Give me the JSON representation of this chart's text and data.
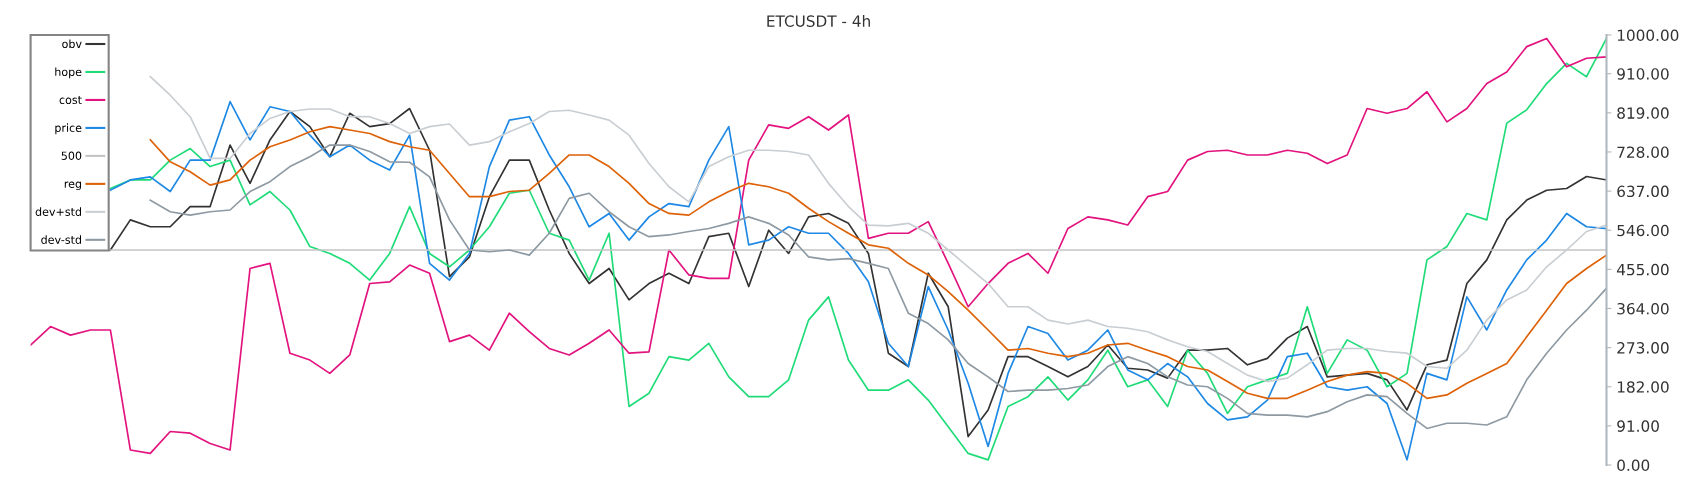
{
  "chart_data": {
    "type": "line",
    "title": "ETCUSDT - 4h",
    "categories": [
      null,
      null,
      null,
      null,
      null,
      null,
      null,
      null,
      null,
      null,
      null,
      null,
      null,
      null,
      null,
      null,
      null,
      null,
      null,
      null,
      null,
      null,
      null,
      null,
      null,
      null,
      null,
      null,
      null,
      null,
      null,
      null,
      null,
      null,
      null,
      null,
      null,
      null,
      null,
      null,
      null,
      null,
      null,
      null,
      null,
      null,
      null,
      null,
      null,
      null,
      null,
      null,
      null,
      null,
      null,
      null,
      null,
      null,
      null,
      null,
      null,
      null,
      null,
      null,
      null,
      null,
      null,
      null,
      null,
      null,
      null,
      null,
      null,
      null,
      null,
      null,
      null,
      null,
      null,
      null
    ],
    "series": [
      {
        "name": "obv",
        "color": "#333333",
        "values": [
          null,
          null,
          null,
          null,
          500,
          570,
          554,
          554,
          601,
          601,
          744,
          655,
          756,
          822,
          787,
          717,
          818,
          787,
          794,
          829,
          732,
          438,
          484,
          624,
          709,
          709,
          593,
          492,
          422,
          457,
          384,
          422,
          446,
          422,
          531,
          539,
          415,
          546,
          492,
          577,
          585,
          562,
          492,
          260,
          229,
          446,
          368,
          66,
          128,
          252,
          252,
          229,
          205,
          229,
          279,
          225,
          221,
          202,
          267,
          267,
          271,
          233,
          248,
          295,
          322,
          205,
          209,
          213,
          198,
          128,
          233,
          244,
          422,
          477,
          570,
          616,
          639,
          643,
          671,
          663
        ]
      },
      {
        "name": "hope",
        "color": "#1fdc78",
        "values": [
          null,
          null,
          null,
          null,
          643,
          663,
          663,
          709,
          736,
          694,
          709,
          605,
          636,
          593,
          508,
          492,
          469,
          430,
          492,
          601,
          492,
          461,
          500,
          554,
          632,
          639,
          539,
          523,
          430,
          539,
          136,
          167,
          252,
          244,
          283,
          205,
          159,
          159,
          198,
          337,
          391,
          244,
          174,
          174,
          198,
          151,
          89,
          27,
          12,
          136,
          159,
          205,
          151,
          198,
          267,
          182,
          198,
          136,
          267,
          213,
          120,
          182,
          198,
          213,
          368,
          213,
          291,
          267,
          182,
          213,
          477,
          508,
          585,
          570,
          795,
          826,
          887,
          934,
          903,
          992
        ]
      },
      {
        "name": "cost",
        "color": "#e2127e",
        "values": [
          279,
          322,
          302,
          314,
          314,
          35,
          27,
          78,
          74,
          50,
          35,
          457,
          469,
          260,
          244,
          213,
          256,
          422,
          426,
          465,
          446,
          287,
          302,
          267,
          353,
          310,
          271,
          256,
          283,
          314,
          260,
          263,
          500,
          442,
          434,
          434,
          709,
          791,
          783,
          810,
          779,
          814,
          527,
          539,
          539,
          566,
          469,
          368,
          422,
          469,
          492,
          446,
          550,
          577,
          570,
          558,
          624,
          636,
          709,
          729,
          732,
          721,
          721,
          732,
          725,
          701,
          721,
          829,
          818,
          829,
          868,
          798,
          829,
          887,
          914,
          973,
          992,
          926,
          946,
          949
        ]
      },
      {
        "name": "price",
        "color": "#1e88e5",
        "values": [
          null,
          null,
          null,
          null,
          639,
          663,
          670,
          636,
          709,
          709,
          845,
          756,
          833,
          822,
          767,
          717,
          744,
          709,
          686,
          767,
          469,
          430,
          492,
          694,
          802,
          810,
          721,
          647,
          554,
          585,
          523,
          577,
          608,
          601,
          709,
          787,
          512,
          523,
          554,
          539,
          539,
          492,
          426,
          283,
          229,
          415,
          314,
          190,
          43,
          213,
          322,
          306,
          244,
          267,
          314,
          221,
          198,
          236,
          205,
          143,
          105,
          112,
          151,
          252,
          260,
          182,
          174,
          182,
          143,
          12,
          213,
          198,
          391,
          314,
          407,
          477,
          523,
          585,
          554,
          550
        ]
      },
      {
        "name": "500",
        "color": "#c4c4c4",
        "values": [
          null,
          null,
          null,
          null,
          500,
          500,
          500,
          500,
          500,
          500,
          500,
          500,
          500,
          500,
          500,
          500,
          500,
          500,
          500,
          500,
          500,
          500,
          500,
          500,
          500,
          500,
          500,
          500,
          500,
          500,
          500,
          500,
          500,
          500,
          500,
          500,
          500,
          500,
          500,
          500,
          500,
          500,
          500,
          500,
          500,
          500,
          500,
          500,
          500,
          500,
          500,
          500,
          500,
          500,
          500,
          500,
          500,
          500,
          500,
          500,
          500,
          500,
          500,
          500,
          500,
          500,
          500,
          500,
          500,
          500,
          500,
          500,
          500,
          500,
          500,
          500,
          500,
          500,
          500,
          500
        ]
      },
      {
        "name": "reg",
        "color": "#dd6208",
        "values": [
          null,
          null,
          null,
          null,
          null,
          null,
          756,
          705,
          682,
          651,
          663,
          709,
          740,
          756,
          775,
          787,
          779,
          771,
          752,
          740,
          732,
          678,
          624,
          624,
          636,
          639,
          678,
          721,
          721,
          694,
          655,
          608,
          585,
          581,
          612,
          636,
          655,
          647,
          632,
          597,
          566,
          539,
          512,
          504,
          469,
          442,
          403,
          360,
          314,
          267,
          271,
          260,
          252,
          260,
          279,
          283,
          267,
          252,
          229,
          221,
          194,
          167,
          155,
          155,
          174,
          194,
          209,
          217,
          213,
          190,
          155,
          163,
          190,
          213,
          236,
          298,
          360,
          422,
          457,
          488
        ]
      },
      {
        "name": "dev+std",
        "color": "#c9ced3",
        "values": [
          null,
          null,
          null,
          null,
          null,
          null,
          903,
          860,
          810,
          713,
          713,
          771,
          806,
          822,
          828,
          828,
          810,
          810,
          794,
          771,
          787,
          793,
          744,
          752,
          775,
          794,
          822,
          825,
          814,
          802,
          767,
          701,
          647,
          612,
          694,
          717,
          732,
          732,
          729,
          721,
          655,
          601,
          558,
          556,
          562,
          539,
          500,
          461,
          422,
          368,
          368,
          337,
          328,
          337,
          322,
          318,
          310,
          291,
          275,
          264,
          236,
          209,
          194,
          202,
          233,
          267,
          271,
          271,
          264,
          260,
          229,
          225,
          267,
          337,
          384,
          407,
          461,
          500,
          543,
          558
        ]
      },
      {
        "name": "dev-std",
        "color": "#8e9aa3",
        "values": [
          null,
          null,
          null,
          null,
          null,
          null,
          616,
          589,
          581,
          589,
          593,
          636,
          659,
          694,
          717,
          744,
          744,
          729,
          705,
          704,
          670,
          570,
          500,
          496,
          500,
          488,
          539,
          620,
          632,
          589,
          554,
          531,
          535,
          543,
          550,
          562,
          577,
          562,
          535,
          484,
          477,
          480,
          469,
          457,
          353,
          329,
          291,
          236,
          205,
          171,
          174,
          174,
          178,
          186,
          229,
          252,
          236,
          205,
          186,
          182,
          155,
          120,
          116,
          116,
          112,
          124,
          147,
          163,
          159,
          120,
          85,
          97,
          97,
          93,
          112,
          198,
          260,
          314,
          360,
          411
        ]
      }
    ],
    "ylim": [
      0,
      1000
    ],
    "yticks": [
      {
        "value": 0,
        "label": "0.00"
      },
      {
        "value": 91,
        "label": "91.00"
      },
      {
        "value": 182,
        "label": "182.00"
      },
      {
        "value": 273,
        "label": "273.00"
      },
      {
        "value": 364,
        "label": "364.00"
      },
      {
        "value": 455,
        "label": "455.00"
      },
      {
        "value": 546,
        "label": "546.00"
      },
      {
        "value": 637,
        "label": "637.00"
      },
      {
        "value": 728,
        "label": "728.00"
      },
      {
        "value": 819,
        "label": "819.00"
      },
      {
        "value": 910,
        "label": "910.00"
      },
      {
        "value": 1000,
        "label": "1000.00"
      }
    ],
    "tick_labels": "y",
    "grid": false,
    "legend": "top left",
    "marker": "none",
    "line_style": "solid"
  }
}
